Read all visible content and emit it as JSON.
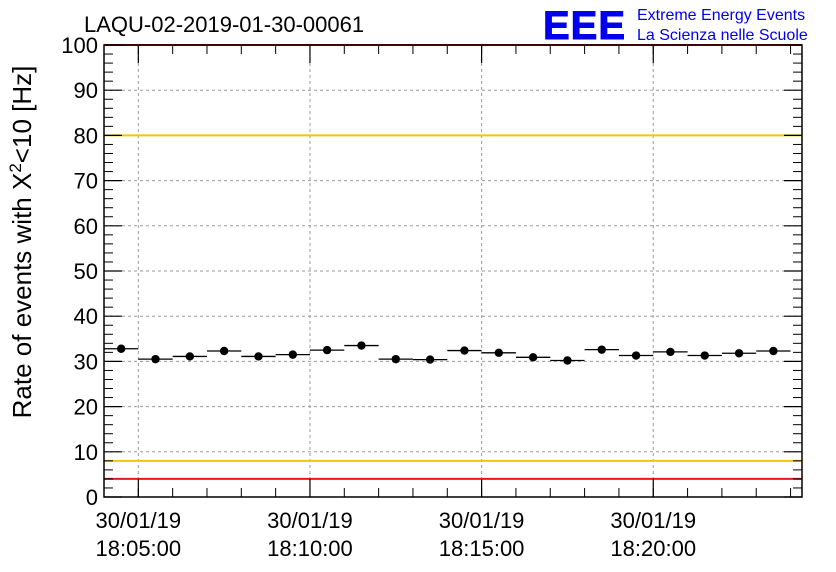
{
  "logo": {
    "letters": "EEE",
    "line1": "Extreme Energy Events",
    "line2": "La Scienza nelle Scuole"
  },
  "chart_data": {
    "type": "scatter",
    "title": "LAQU-02-2019-01-30-00061",
    "ylabel": "Rate of events with X²<10 [Hz]",
    "ylabel_parts": {
      "pre": "Rate of events with X",
      "sup": "2",
      "post": "<10 [Hz]"
    },
    "ylim": [
      0,
      100
    ],
    "y_ticks": [
      0,
      10,
      20,
      30,
      40,
      50,
      60,
      70,
      80,
      90,
      100
    ],
    "x_range": [
      "30/01/19 18:04:00",
      "30/01/19 18:24:20"
    ],
    "x_ticks": [
      {
        "date": "30/01/19",
        "time": "18:05:00"
      },
      {
        "date": "30/01/19",
        "time": "18:10:00"
      },
      {
        "date": "30/01/19",
        "time": "18:15:00"
      },
      {
        "date": "30/01/19",
        "time": "18:20:00"
      }
    ],
    "grid": true,
    "reference_lines": [
      {
        "y": 100,
        "color": "#e8191c"
      },
      {
        "y": 80,
        "color": "#f2c40f"
      },
      {
        "y": 8,
        "color": "#f2c40f"
      },
      {
        "y": 4,
        "color": "#e8191c"
      }
    ],
    "bin_width_min": 1,
    "series": [
      {
        "color": "#000000",
        "x": [
          "18:04:30",
          "18:05:30",
          "18:06:30",
          "18:07:30",
          "18:08:30",
          "18:09:30",
          "18:10:30",
          "18:11:30",
          "18:12:30",
          "18:13:30",
          "18:14:30",
          "18:15:30",
          "18:16:30",
          "18:17:30",
          "18:18:30",
          "18:19:30",
          "18:20:30",
          "18:21:30",
          "18:22:30",
          "18:23:30"
        ],
        "values": [
          32.8,
          30.5,
          31.1,
          32.3,
          31.1,
          31.5,
          32.5,
          33.5,
          30.5,
          30.4,
          32.4,
          31.9,
          30.9,
          30.2,
          32.6,
          31.3,
          32.1,
          31.3,
          31.8,
          32.3
        ]
      }
    ]
  }
}
